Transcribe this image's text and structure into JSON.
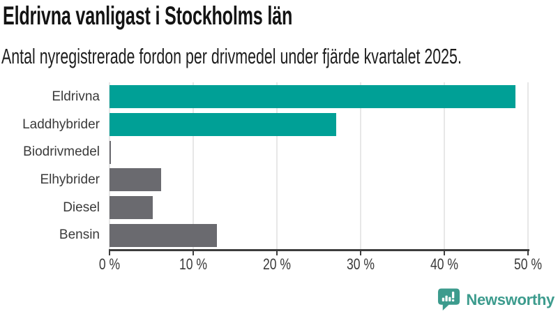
{
  "header": {
    "title": "Eldrivna vanligast i Stockholms län",
    "subtitle": "Antal nyregistrerade fordon per drivmedel under fjärde kvartalet 2025."
  },
  "chart_data": {
    "type": "bar",
    "orientation": "horizontal",
    "title": "Eldrivna vanligast i Stockholms län",
    "subtitle": "Antal nyregistrerade fordon per drivmedel under fjärde kvartalet 2025.",
    "categories": [
      "Eldrivna",
      "Laddhybrider",
      "Biodrivmedel",
      "Elhybrider",
      "Diesel",
      "Bensin"
    ],
    "values": [
      48.5,
      27.1,
      0.15,
      6.2,
      5.2,
      12.8
    ],
    "unit": "%",
    "xlabel": "",
    "ylabel": "",
    "xlim": [
      0,
      50
    ],
    "x_ticks": [
      0,
      10,
      20,
      30,
      40,
      50
    ],
    "x_tick_labels": [
      "0 %",
      "10 %",
      "20 %",
      "30 %",
      "40 %",
      "50 %"
    ],
    "grid": "vertical-only",
    "legend": "none",
    "bar_colors": [
      "#00a096",
      "#00a096",
      "#6a6a6f",
      "#6a6a6f",
      "#6a6a6f",
      "#6a6a6f"
    ]
  },
  "colors": {
    "highlight_teal": "#00a096",
    "neutral_gray": "#6a6a6f",
    "gridline": "#e7e7e7",
    "axis": "#3d3d3d",
    "label_text": "#3a3a3a",
    "logo_teal": "#3c9b8d"
  },
  "footer": {
    "brand": "Newsworthy"
  }
}
